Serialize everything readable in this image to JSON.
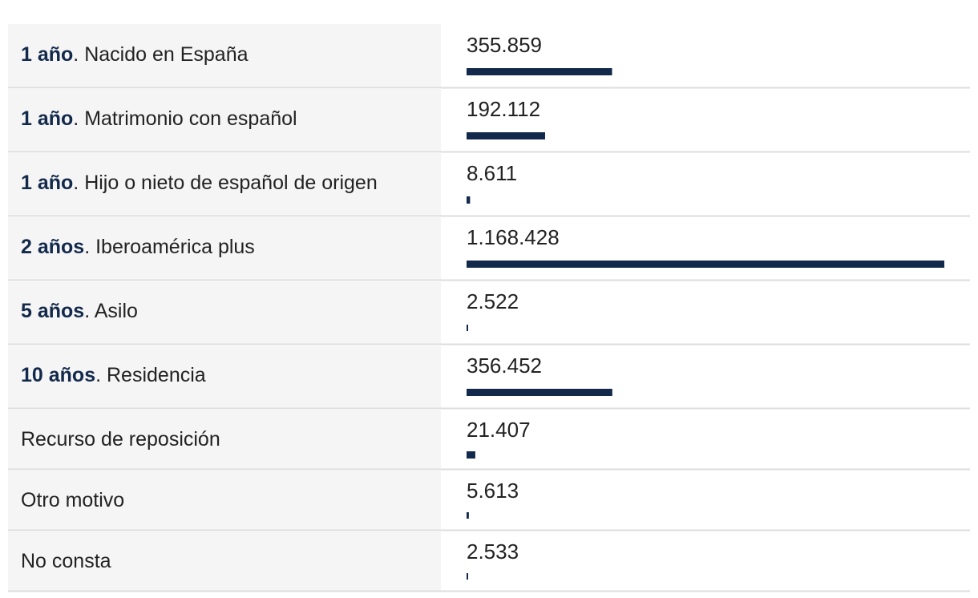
{
  "chart_data": {
    "type": "bar",
    "color": "#13294b",
    "categories": [
      {
        "lead": "1 año",
        "rest": ". Nacido en España"
      },
      {
        "lead": "1 año",
        "rest": ". Matrimonio con español"
      },
      {
        "lead": "1 año",
        "rest": ". Hijo o nieto de español de origen"
      },
      {
        "lead": "2 años",
        "rest": ". Iberoamérica plus"
      },
      {
        "lead": "5 años",
        "rest": ". Asilo"
      },
      {
        "lead": "10 años",
        "rest": ". Residencia"
      },
      {
        "rest": "Recurso de reposición"
      },
      {
        "rest": "Otro motivo"
      },
      {
        "rest": "No consta"
      }
    ],
    "values": [
      355859,
      192112,
      8611,
      1168428,
      2522,
      356452,
      21407,
      5613,
      2533
    ],
    "value_labels": [
      "355.859",
      "192.112",
      "8.611",
      "1.168.428",
      "2.522",
      "356.452",
      "21.407",
      "5.613",
      "2.533"
    ]
  }
}
